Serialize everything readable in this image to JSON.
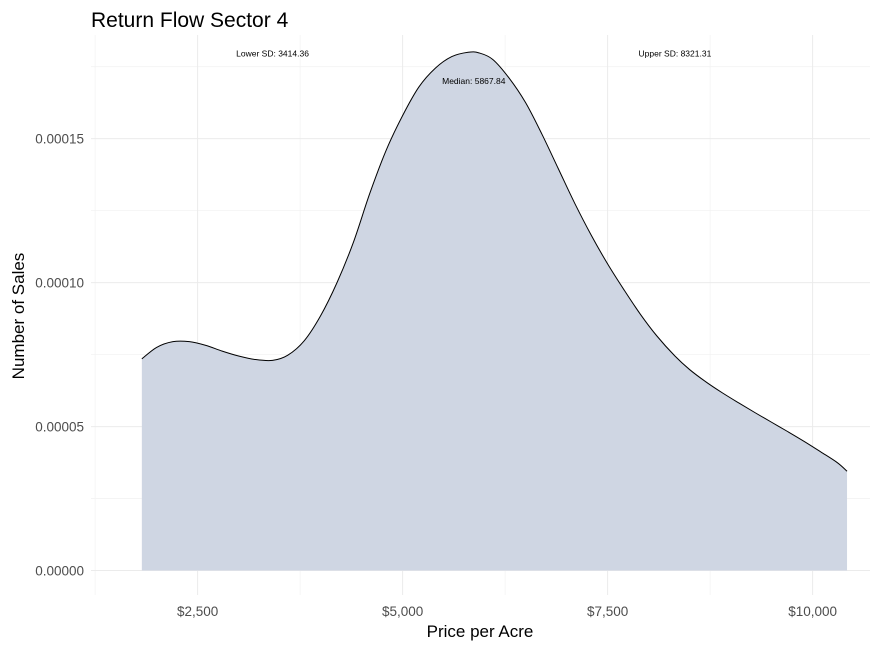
{
  "chart_data": {
    "type": "area",
    "title": "Return Flow Sector 4",
    "xlabel": "Price per Acre",
    "ylabel": "Number of Sales",
    "xlim": [
      1200,
      10700
    ],
    "ylim": [
      -8.5e-06,
      0.000186
    ],
    "x_ticks": [
      2500,
      5000,
      7500,
      10000
    ],
    "x_tick_labels": [
      "$2,500",
      "$5,000",
      "$7,500",
      "$10,000"
    ],
    "y_ticks": [
      0,
      5e-05,
      0.0001,
      0.00015
    ],
    "y_tick_labels": [
      "0.00000",
      "0.00005",
      "0.00010",
      "0.00015"
    ],
    "grid": true,
    "legend": "none",
    "fill_color": "#cfd6e3",
    "line_color": "#000000",
    "series": [
      {
        "x": [
          1820,
          2000,
          2200,
          2400,
          2600,
          2800,
          3000,
          3200,
          3414,
          3600,
          3800,
          4000,
          4200,
          4400,
          4600,
          4800,
          5000,
          5200,
          5400,
          5600,
          5800,
          5930,
          6100,
          6300,
          6500,
          6700,
          6900,
          7100,
          7300,
          7500,
          7700,
          7900,
          8100,
          8321,
          8500,
          8700,
          8900,
          9100,
          9300,
          9500,
          9700,
          9900,
          10100,
          10300,
          10420
        ],
        "y": [
          7.35e-05,
          7.75e-05,
          7.95e-05,
          7.95e-05,
          7.82e-05,
          7.62e-05,
          7.45e-05,
          7.33e-05,
          7.3e-05,
          7.48e-05,
          7.98e-05,
          8.85e-05,
          0.0001,
          0.000114,
          0.000131,
          0.000146,
          0.000158,
          0.000168,
          0.0001745,
          0.0001785,
          0.00018,
          0.0001798,
          0.0001775,
          0.000171,
          0.0001625,
          0.0001515,
          0.0001395,
          0.0001275,
          0.0001165,
          0.0001065,
          9.75e-05,
          8.9e-05,
          8.15e-05,
          7.45e-05,
          6.98e-05,
          6.55e-05,
          6.17e-05,
          5.82e-05,
          5.48e-05,
          5.15e-05,
          4.82e-05,
          4.48e-05,
          4.12e-05,
          3.75e-05,
          3.45e-05
        ]
      }
    ],
    "annotations": [
      {
        "text": "Lower SD: 3414.36",
        "x": 3414,
        "y": 0.0001795
      },
      {
        "text": "Median: 5867.84",
        "x": 5868,
        "y": 0.00017
      },
      {
        "text": "Upper SD: 8321.31",
        "x": 8321,
        "y": 0.0001795
      }
    ]
  }
}
